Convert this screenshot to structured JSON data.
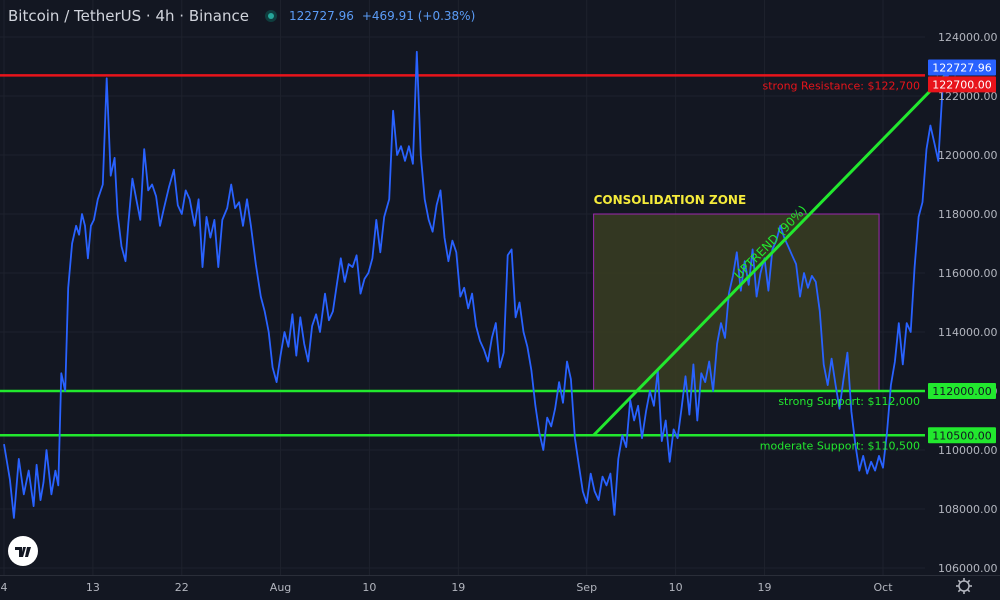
{
  "header": {
    "symbol": "Bitcoin / TetherUS · 4h · Binance",
    "last_price": "122727.96",
    "change": "+469.91 (+0.38%)"
  },
  "colors": {
    "background": "#131722",
    "price_line": "#2962ff",
    "resistance": "#e8141b",
    "support": "#22e82e",
    "zone_fill": "#3a3d22",
    "zone_border": "#9c27b0",
    "zone_title": "#f5eb3b"
  },
  "chart_data": {
    "type": "line",
    "title": "",
    "xlabel": "",
    "ylabel": "",
    "ylim": [
      105800,
      124800
    ],
    "y_ticks": [
      {
        "value": 124000,
        "label": "124000.00"
      },
      {
        "value": 122000,
        "label": "122000.00"
      },
      {
        "value": 120000,
        "label": "120000.00"
      },
      {
        "value": 118000,
        "label": "118000.00"
      },
      {
        "value": 116000,
        "label": "116000.00"
      },
      {
        "value": 114000,
        "label": "114000.00"
      },
      {
        "value": 112000,
        "label": "112000.00"
      },
      {
        "value": 110000,
        "label": "110000.00"
      },
      {
        "value": 108000,
        "label": "108000.00"
      },
      {
        "value": 106000,
        "label": "106000.00"
      }
    ],
    "x_ticks": [
      {
        "day": 0,
        "label": "4"
      },
      {
        "day": 9,
        "label": "13"
      },
      {
        "day": 18,
        "label": "22"
      },
      {
        "day": 28,
        "label": "Aug"
      },
      {
        "day": 37,
        "label": "10"
      },
      {
        "day": 46,
        "label": "19"
      },
      {
        "day": 59,
        "label": "Sep"
      },
      {
        "day": 68,
        "label": "10"
      },
      {
        "day": 77,
        "label": "19"
      },
      {
        "day": 89,
        "label": "Oct"
      }
    ],
    "series": [
      {
        "name": "BTCUSDT",
        "points": [
          [
            0,
            110200
          ],
          [
            0.6,
            109000
          ],
          [
            1,
            107700
          ],
          [
            1.5,
            109700
          ],
          [
            2,
            108500
          ],
          [
            2.5,
            109300
          ],
          [
            3,
            108100
          ],
          [
            3.3,
            109500
          ],
          [
            3.7,
            108300
          ],
          [
            4,
            108900
          ],
          [
            4.3,
            110000
          ],
          [
            4.8,
            108500
          ],
          [
            5.2,
            109300
          ],
          [
            5.5,
            108800
          ],
          [
            5.8,
            112600
          ],
          [
            6.2,
            112000
          ],
          [
            6.5,
            115500
          ],
          [
            6.9,
            117000
          ],
          [
            7.3,
            117600
          ],
          [
            7.6,
            117300
          ],
          [
            7.9,
            118000
          ],
          [
            8.2,
            117600
          ],
          [
            8.5,
            116500
          ],
          [
            8.8,
            117600
          ],
          [
            9.1,
            117800
          ],
          [
            9.5,
            118500
          ],
          [
            10,
            119000
          ],
          [
            10.4,
            122600
          ],
          [
            10.8,
            119300
          ],
          [
            11.2,
            119900
          ],
          [
            11.5,
            118000
          ],
          [
            11.9,
            116900
          ],
          [
            12.3,
            116400
          ],
          [
            12.6,
            117700
          ],
          [
            13,
            119200
          ],
          [
            13.4,
            118500
          ],
          [
            13.8,
            117800
          ],
          [
            14.2,
            120200
          ],
          [
            14.6,
            118800
          ],
          [
            15,
            119000
          ],
          [
            15.4,
            118600
          ],
          [
            15.8,
            117600
          ],
          [
            16.2,
            118200
          ],
          [
            16.7,
            118900
          ],
          [
            17.2,
            119500
          ],
          [
            17.6,
            118300
          ],
          [
            18,
            118000
          ],
          [
            18.4,
            118800
          ],
          [
            18.8,
            118500
          ],
          [
            19.3,
            117600
          ],
          [
            19.7,
            118500
          ],
          [
            20.1,
            116200
          ],
          [
            20.5,
            117900
          ],
          [
            20.9,
            117200
          ],
          [
            21.3,
            117800
          ],
          [
            21.7,
            116200
          ],
          [
            22.1,
            117800
          ],
          [
            22.6,
            118200
          ],
          [
            23,
            119000
          ],
          [
            23.4,
            118200
          ],
          [
            23.8,
            118400
          ],
          [
            24.2,
            117600
          ],
          [
            24.6,
            118500
          ],
          [
            25,
            117600
          ],
          [
            25.5,
            116300
          ],
          [
            26,
            115200
          ],
          [
            26.4,
            114700
          ],
          [
            26.8,
            114000
          ],
          [
            27.2,
            112800
          ],
          [
            27.6,
            112300
          ],
          [
            28,
            113200
          ],
          [
            28.4,
            114000
          ],
          [
            28.8,
            113500
          ],
          [
            29.2,
            114600
          ],
          [
            29.6,
            113200
          ],
          [
            30,
            114500
          ],
          [
            30.4,
            113600
          ],
          [
            30.8,
            113000
          ],
          [
            31.2,
            114200
          ],
          [
            31.6,
            114600
          ],
          [
            32,
            114000
          ],
          [
            32.5,
            115300
          ],
          [
            32.9,
            114400
          ],
          [
            33.3,
            114700
          ],
          [
            33.7,
            115600
          ],
          [
            34.1,
            116500
          ],
          [
            34.5,
            115700
          ],
          [
            34.9,
            116300
          ],
          [
            35.3,
            116200
          ],
          [
            35.7,
            116600
          ],
          [
            36.1,
            115300
          ],
          [
            36.5,
            115800
          ],
          [
            36.9,
            116000
          ],
          [
            37.3,
            116500
          ],
          [
            37.7,
            117800
          ],
          [
            38.1,
            116700
          ],
          [
            38.5,
            117900
          ],
          [
            39,
            118500
          ],
          [
            39.4,
            121500
          ],
          [
            39.8,
            120000
          ],
          [
            40.2,
            120300
          ],
          [
            40.6,
            119800
          ],
          [
            41,
            120300
          ],
          [
            41.4,
            119700
          ],
          [
            41.8,
            123500
          ],
          [
            42.2,
            120000
          ],
          [
            42.6,
            118500
          ],
          [
            43,
            117800
          ],
          [
            43.4,
            117400
          ],
          [
            43.8,
            118300
          ],
          [
            44.2,
            118800
          ],
          [
            44.6,
            117200
          ],
          [
            45,
            116400
          ],
          [
            45.4,
            117100
          ],
          [
            45.8,
            116700
          ],
          [
            46.2,
            115200
          ],
          [
            46.6,
            115500
          ],
          [
            47,
            114800
          ],
          [
            47.4,
            115300
          ],
          [
            47.8,
            114200
          ],
          [
            48.2,
            113700
          ],
          [
            48.6,
            113400
          ],
          [
            49,
            113000
          ],
          [
            49.4,
            113800
          ],
          [
            49.8,
            114300
          ],
          [
            50.2,
            112800
          ],
          [
            50.6,
            113300
          ],
          [
            51,
            116600
          ],
          [
            51.4,
            116800
          ],
          [
            51.8,
            114500
          ],
          [
            52.2,
            115000
          ],
          [
            52.6,
            114000
          ],
          [
            53,
            113500
          ],
          [
            53.4,
            112700
          ],
          [
            53.8,
            111500
          ],
          [
            54.2,
            110600
          ],
          [
            54.6,
            110000
          ],
          [
            55,
            111100
          ],
          [
            55.4,
            110800
          ],
          [
            55.8,
            111400
          ],
          [
            56.2,
            112300
          ],
          [
            56.6,
            111600
          ],
          [
            57,
            113000
          ],
          [
            57.4,
            112400
          ],
          [
            57.8,
            110400
          ],
          [
            58.2,
            109500
          ],
          [
            58.6,
            108600
          ],
          [
            59,
            108200
          ],
          [
            59.4,
            109200
          ],
          [
            59.8,
            108600
          ],
          [
            60.2,
            108300
          ],
          [
            60.6,
            109100
          ],
          [
            61,
            108800
          ],
          [
            61.4,
            109200
          ],
          [
            61.8,
            107800
          ],
          [
            62.2,
            109700
          ],
          [
            62.6,
            110500
          ],
          [
            63,
            110100
          ],
          [
            63.4,
            111700
          ],
          [
            63.8,
            111000
          ],
          [
            64.2,
            111500
          ],
          [
            64.6,
            110400
          ],
          [
            65,
            111300
          ],
          [
            65.4,
            112000
          ],
          [
            65.8,
            111500
          ],
          [
            66.2,
            112700
          ],
          [
            66.6,
            110300
          ],
          [
            67,
            111000
          ],
          [
            67.4,
            109600
          ],
          [
            67.8,
            110700
          ],
          [
            68.2,
            110400
          ],
          [
            68.6,
            111400
          ],
          [
            69,
            112500
          ],
          [
            69.4,
            111200
          ],
          [
            69.8,
            112900
          ],
          [
            70.2,
            111000
          ],
          [
            70.6,
            112600
          ],
          [
            71,
            112300
          ],
          [
            71.4,
            113000
          ],
          [
            71.8,
            112000
          ],
          [
            72.2,
            113600
          ],
          [
            72.6,
            114300
          ],
          [
            73,
            113800
          ],
          [
            73.4,
            115300
          ],
          [
            73.8,
            115900
          ],
          [
            74.2,
            116700
          ],
          [
            74.6,
            115400
          ],
          [
            75,
            116400
          ],
          [
            75.4,
            115600
          ],
          [
            75.8,
            116800
          ],
          [
            76.2,
            115200
          ],
          [
            76.6,
            116000
          ],
          [
            77,
            116500
          ],
          [
            77.4,
            115400
          ],
          [
            77.8,
            116800
          ],
          [
            78.2,
            117100
          ],
          [
            78.6,
            117600
          ],
          [
            79,
            117200
          ],
          [
            79.4,
            116900
          ],
          [
            79.8,
            116600
          ],
          [
            80.2,
            116300
          ],
          [
            80.6,
            115200
          ],
          [
            81,
            116000
          ],
          [
            81.4,
            115500
          ],
          [
            81.8,
            115900
          ],
          [
            82.2,
            115700
          ],
          [
            82.6,
            114700
          ],
          [
            83,
            112900
          ],
          [
            83.4,
            112200
          ],
          [
            83.8,
            113100
          ],
          [
            84.2,
            112200
          ],
          [
            84.6,
            111400
          ],
          [
            85,
            112400
          ],
          [
            85.4,
            113300
          ],
          [
            85.8,
            111300
          ],
          [
            86.2,
            110200
          ],
          [
            86.6,
            109300
          ],
          [
            87,
            109800
          ],
          [
            87.4,
            109200
          ],
          [
            87.8,
            109600
          ],
          [
            88.2,
            109300
          ],
          [
            88.6,
            109800
          ],
          [
            89,
            109400
          ],
          [
            89.4,
            110600
          ],
          [
            89.8,
            112200
          ],
          [
            90.2,
            113000
          ],
          [
            90.6,
            114300
          ],
          [
            91,
            112900
          ],
          [
            91.4,
            114300
          ],
          [
            91.8,
            114000
          ],
          [
            92.2,
            116200
          ],
          [
            92.6,
            117900
          ],
          [
            93,
            118400
          ],
          [
            93.4,
            120200
          ],
          [
            93.8,
            121000
          ],
          [
            94.2,
            120400
          ],
          [
            94.6,
            119800
          ],
          [
            95,
            122100
          ],
          [
            95.4,
            122727.96
          ]
        ]
      }
    ],
    "horizontal_levels": [
      {
        "value": 122700,
        "label": "122700.00",
        "annotation": "strong Resistance: $122,700",
        "color": "#e8141b"
      },
      {
        "value": 112000,
        "label": "112000.00",
        "annotation": "strong Support: $112,000",
        "color": "#22e82e"
      },
      {
        "value": 110500,
        "label": "110500.00",
        "annotation": "moderate Support: $110,500",
        "color": "#22e82e"
      }
    ],
    "zone": {
      "label": "CONSOLIDATION ZONE",
      "x_start": 59.7,
      "x_end": 88.6,
      "y_low": 112000,
      "y_high": 118000
    },
    "trendline": {
      "label": "UPTREND (90%)",
      "x0": 59.7,
      "y0": 110500,
      "x1": 95.4,
      "y1": 122727.96
    },
    "last_price_badge": "122727.96",
    "grid": true
  }
}
